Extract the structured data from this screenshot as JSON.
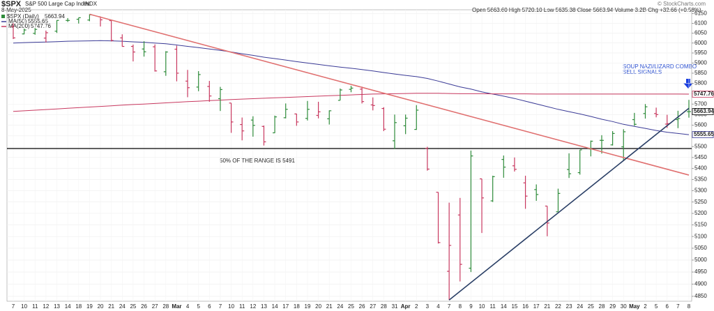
{
  "header": {
    "symbol": "$SPX",
    "name": "S&P 500 Large Cap Index",
    "exchange": "INDX",
    "date": "8-May-2025",
    "quote": "Open 5663.60  High 5720.10  Low 5635.38  Close 5663.94  Volume 3.2B  Chg +32.66 (+0.58%)",
    "watermark": "© StockCharts.com"
  },
  "chart_data": {
    "type": "ohlc",
    "log_scale": true,
    "grid": true,
    "price_series_name": "$SPX (Daily)",
    "up_color": "#2e8b3a",
    "down_color": "#c8385f",
    "categories": [
      "7",
      "10",
      "11",
      "12",
      "13",
      "14",
      "18",
      "19",
      "20",
      "21",
      "24",
      "25",
      "26",
      "27",
      "28",
      "Mar",
      "4",
      "5",
      "6",
      "7",
      "10",
      "11",
      "12",
      "13",
      "14",
      "17",
      "18",
      "19",
      "20",
      "21",
      "24",
      "25",
      "26",
      "27",
      "28",
      "31",
      "Apr",
      "2",
      "3",
      "4",
      "7",
      "8",
      "9",
      "10",
      "11",
      "14",
      "15",
      "16",
      "17",
      "21",
      "22",
      "23",
      "24",
      "25",
      "28",
      "29",
      "30",
      "May",
      "2",
      "5",
      "6",
      "7",
      "8"
    ],
    "open": [
      6083,
      6046,
      6049,
      6025,
      6060,
      6115,
      6121,
      6117,
      6134,
      6114,
      6026,
      5983,
      5970,
      5981,
      5857,
      5969,
      5811,
      5782,
      5785,
      5726,
      5705,
      5603,
      5624,
      5594,
      5564,
      5635,
      5653,
      5632,
      5646,
      5630,
      5718,
      5771,
      5772,
      5696,
      5679,
      5527,
      5597,
      5580,
      5492,
      5293,
      4953,
      5193,
      4966,
      5353,
      5255,
      5441,
      5412,
      5335,
      5305,
      5232,
      5207,
      5395,
      5381,
      5489,
      5529,
      5508,
      5499,
      5626,
      5655,
      5655,
      5605,
      5626,
      5663.6
    ],
    "high": [
      6101,
      6073,
      6076,
      6063,
      6116,
      6127,
      6129,
      6147,
      6135,
      6115,
      6044,
      5992,
      6009,
      5993,
      5959,
      5987,
      5866,
      5860,
      5812,
      5783,
      5705,
      5636,
      5642,
      5598,
      5645,
      5703,
      5654,
      5715,
      5711,
      5670,
      5775,
      5788,
      5784,
      5732,
      5685,
      5650,
      5650,
      5695,
      5499,
      5293,
      5247,
      5268,
      5482,
      5353,
      5367,
      5459,
      5450,
      5367,
      5328,
      5232,
      5309,
      5469,
      5485,
      5528,
      5553,
      5572,
      5581,
      5658,
      5700,
      5683,
      5649,
      5668,
      5720.1
    ],
    "low": [
      6020,
      6044,
      6042,
      6003,
      6051,
      6107,
      6099,
      6111,
      6084,
      6008,
      5982,
      5908,
      5932,
      5858,
      5837,
      5810,
      5733,
      5762,
      5711,
      5667,
      5564,
      5529,
      5546,
      5505,
      5563,
      5632,
      5597,
      5622,
      5632,
      5603,
      5718,
      5757,
      5703,
      5670,
      5572,
      5489,
      5558,
      5578,
      5390,
      5070,
      4835,
      4911,
      4950,
      5115,
      5250,
      5358,
      5386,
      5220,
      5255,
      5101,
      5207,
      5357,
      5372,
      5455,
      5468,
      5505,
      5434,
      5597,
      5631,
      5637,
      5587,
      5586,
      5635.38
    ],
    "close": [
      6026,
      6066,
      6069,
      6052,
      6115,
      6115,
      6129,
      6144,
      6118,
      6013,
      5983,
      5955,
      5956,
      5861,
      5955,
      5850,
      5779,
      5843,
      5739,
      5770,
      5615,
      5573,
      5599,
      5522,
      5639,
      5675,
      5615,
      5675,
      5663,
      5668,
      5768,
      5777,
      5712,
      5693,
      5581,
      5612,
      5633,
      5671,
      5397,
      5074,
      5062,
      4982,
      5457,
      5268,
      5363,
      5406,
      5396,
      5276,
      5283,
      5158,
      5288,
      5376,
      5485,
      5525,
      5529,
      5561,
      5569,
      5604,
      5687,
      5650,
      5607,
      5631.28,
      5663.94
    ],
    "series": [
      {
        "name": "MA(50)",
        "color": "#3a3a96",
        "values": [
          6000,
          6002,
          6004,
          6005,
          6007,
          6009,
          6010,
          6011,
          6012,
          6011,
          6009,
          6006,
          6004,
          6000,
          5996,
          5990,
          5983,
          5977,
          5970,
          5963,
          5955,
          5946,
          5938,
          5929,
          5922,
          5915,
          5907,
          5900,
          5893,
          5886,
          5880,
          5874,
          5868,
          5861,
          5853,
          5846,
          5839,
          5833,
          5824,
          5811,
          5797,
          5783,
          5772,
          5759,
          5748,
          5738,
          5727,
          5714,
          5701,
          5688,
          5675,
          5664,
          5653,
          5641,
          5628,
          5617,
          5604,
          5594,
          5585,
          5575,
          5567,
          5561,
          5555.65
        ]
      },
      {
        "name": "MA(200)",
        "color": "#c8385f",
        "values": [
          5665,
          5668,
          5671,
          5674,
          5677,
          5680,
          5683,
          5686,
          5689,
          5692,
          5695,
          5698,
          5700,
          5703,
          5706,
          5709,
          5712,
          5714,
          5717,
          5719,
          5722,
          5724,
          5726,
          5728,
          5730,
          5732,
          5734,
          5736,
          5738,
          5740,
          5742,
          5744,
          5746,
          5748,
          5749,
          5750,
          5751,
          5752,
          5752,
          5752,
          5751,
          5750,
          5750,
          5750,
          5749,
          5749,
          5749,
          5749,
          5748,
          5748,
          5748,
          5748,
          5748,
          5748,
          5748,
          5748,
          5748,
          5748,
          5748,
          5748,
          5748,
          5748,
          5747.76
        ]
      }
    ],
    "ylim": [
      4830,
      6170
    ],
    "yticks": [
      4850,
      4900,
      4950,
      5000,
      5050,
      5100,
      5150,
      5200,
      5250,
      5300,
      5350,
      5400,
      5450,
      5500,
      5550,
      5600,
      5650,
      5700,
      5750,
      5800,
      5850,
      5900,
      5950,
      6000,
      6050,
      6100,
      6150
    ],
    "hlines": [
      {
        "value": 5491,
        "color": "#000000"
      }
    ],
    "trendlines": [
      {
        "color": "#e07070",
        "from": {
          "x": 7,
          "y": 6147
        },
        "to": {
          "x": 62,
          "y": 5370
        }
      },
      {
        "color": "#2a3f66",
        "from": {
          "x": 40,
          "y": 4835
        },
        "to": {
          "x": 62,
          "y": 5680
        }
      }
    ],
    "annotations": [
      {
        "text": "50% OF THE RANGE IS 5491",
        "color": "#222222"
      },
      {
        "text": "SOUP NAZI/LIZARD COMBO",
        "color": "#2a4fd0"
      },
      {
        "text": "SELL SIGNALS",
        "color": "#2a4fd0"
      }
    ]
  }
}
